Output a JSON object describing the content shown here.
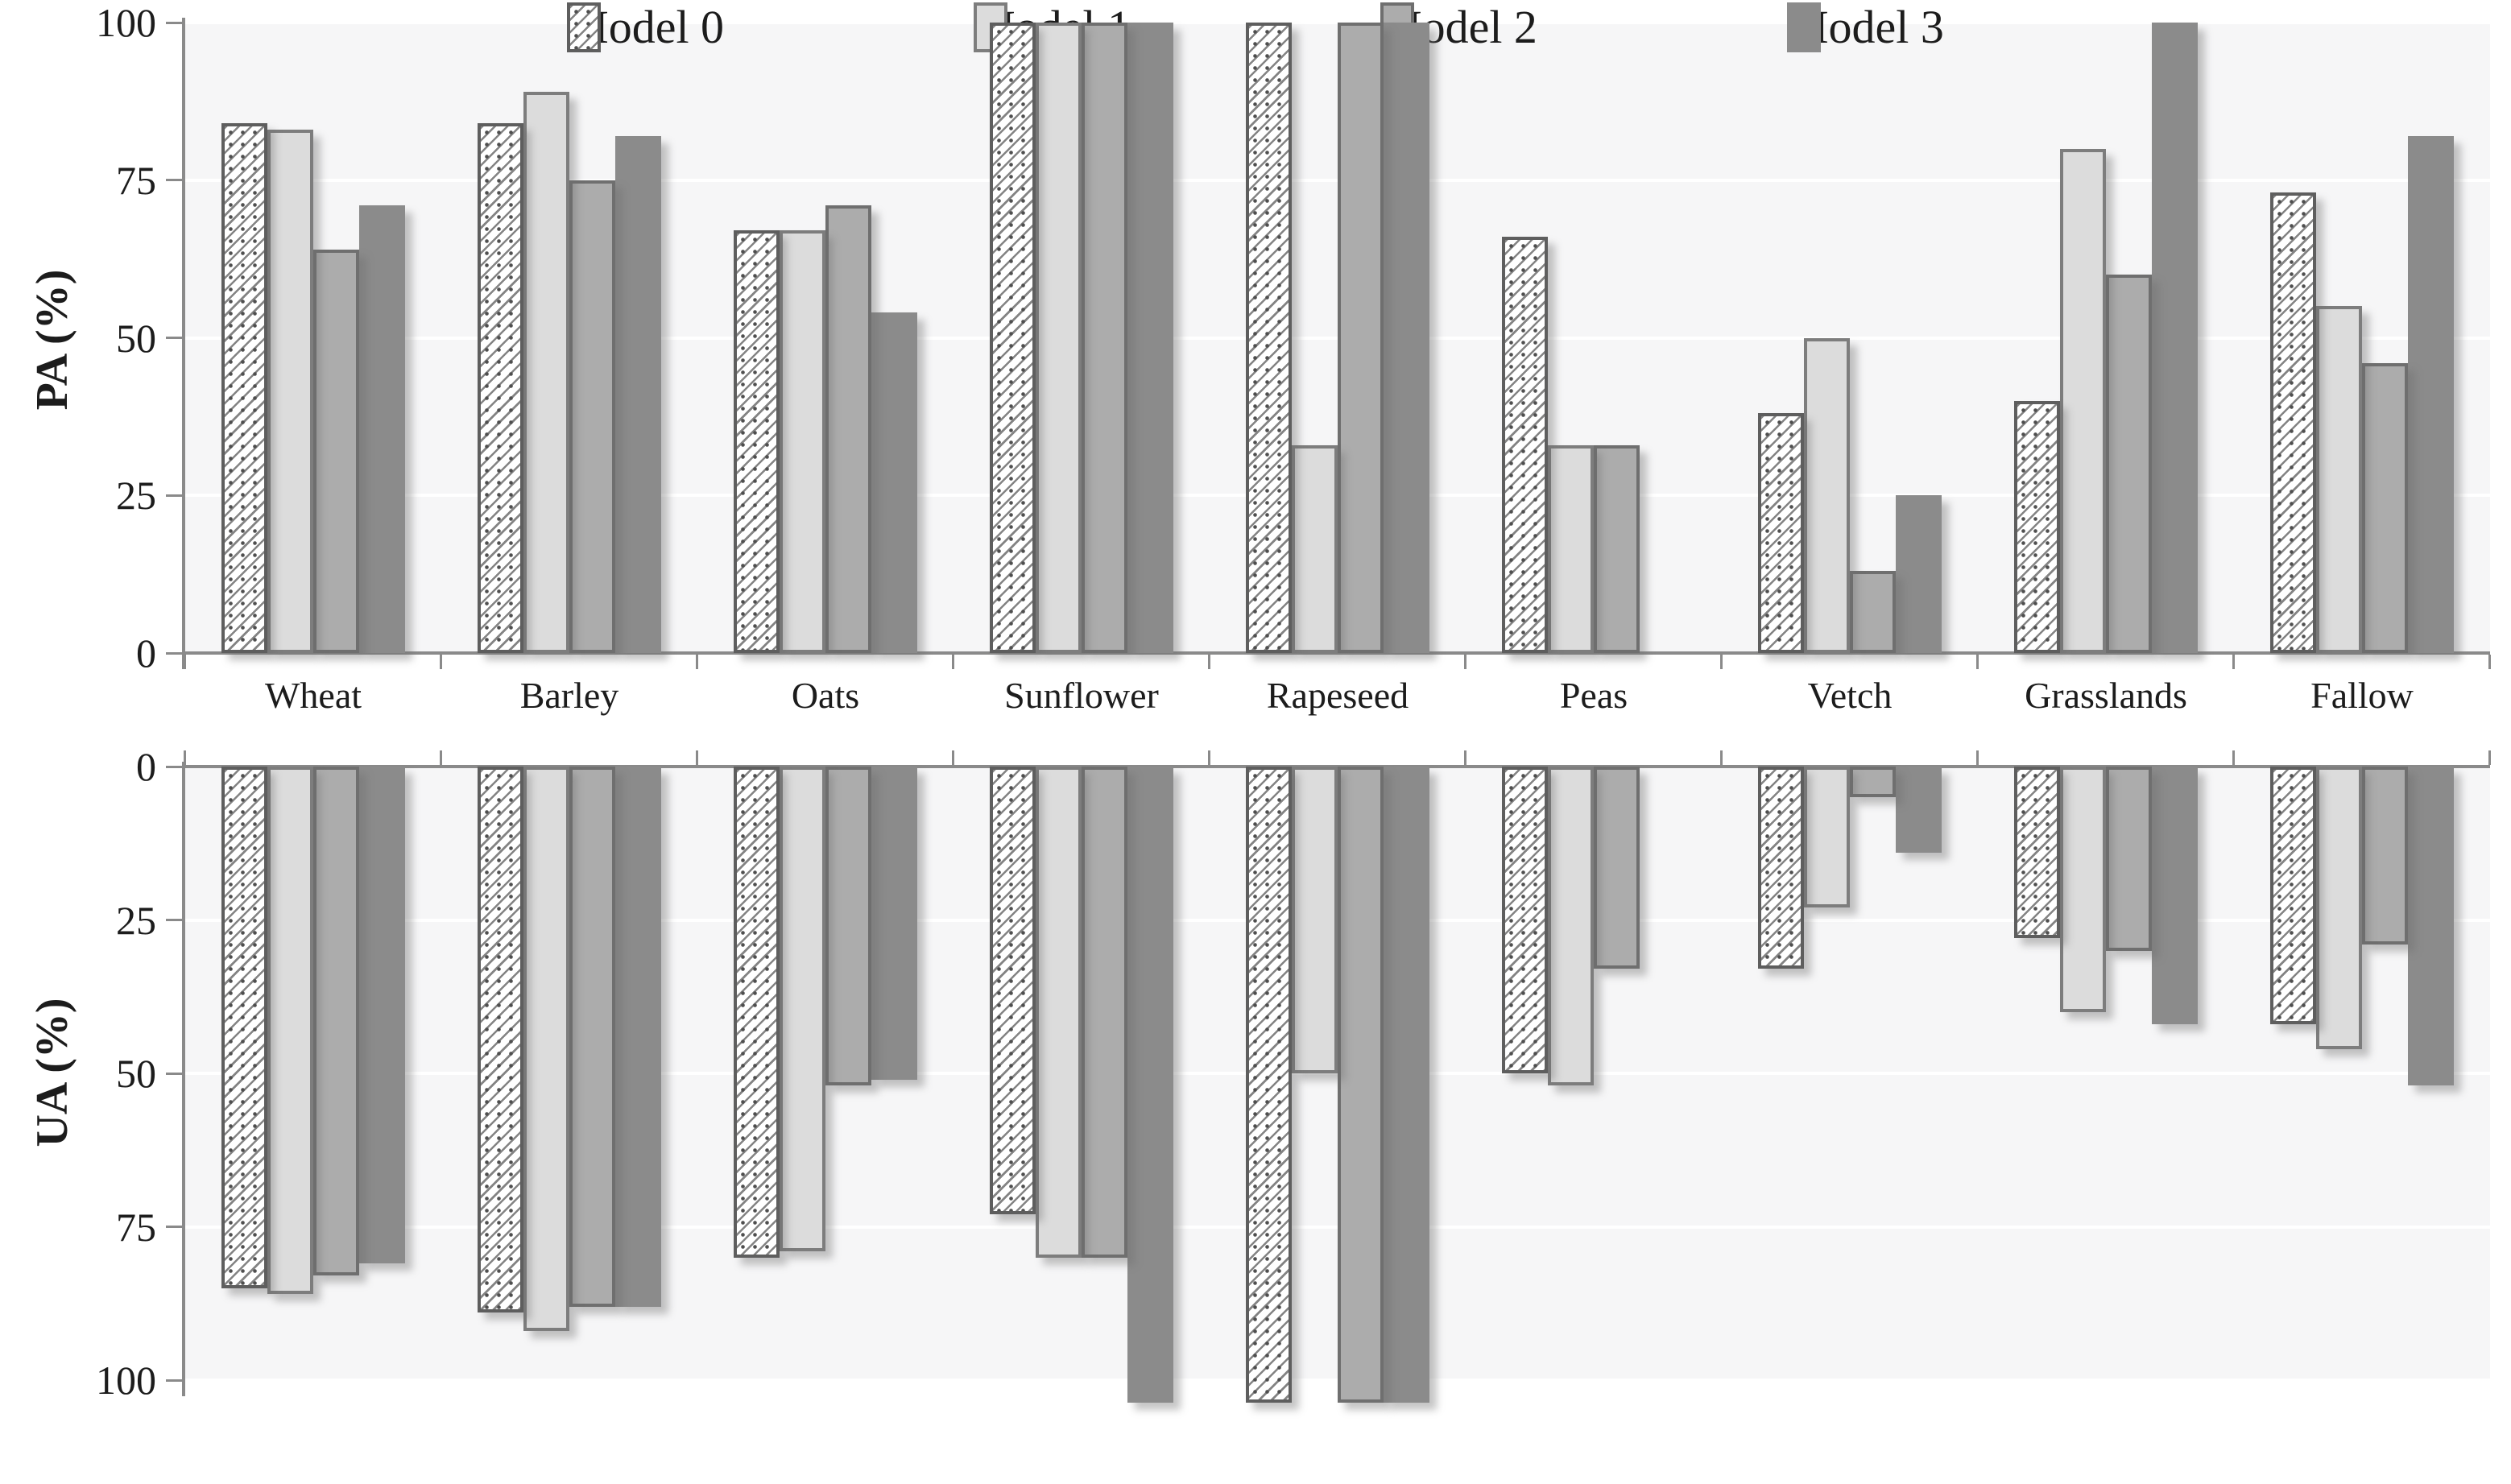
{
  "legend": {
    "items": [
      {
        "label": "Model 0",
        "style": "hatched",
        "fill": "#ffffff"
      },
      {
        "label": "Model 1",
        "style": "solid",
        "fill": "#dcdcdc"
      },
      {
        "label": "Model 2",
        "style": "solid",
        "fill": "#acacac"
      },
      {
        "label": "Model 3",
        "style": "solid",
        "fill": "#8b8b8b"
      }
    ],
    "position": "bottom"
  },
  "colors": {
    "plot_background": "#f6f6f7",
    "gridline": "#ffffff",
    "axis": "#8a8a8a",
    "text": "#1c1c1c",
    "model0_fill": "#ffffff",
    "model1_fill": "#dcdcdc",
    "model2_fill": "#acacac",
    "model3_fill": "#8b8b8b",
    "bar_border": "#6f6f6f"
  },
  "chart_data": [
    {
      "type": "bar",
      "ylabel": "PA (%)",
      "categories": [
        "Wheat",
        "Barley",
        "Oats",
        "Sunflower",
        "Rapeseed",
        "Peas",
        "Vetch",
        "Grasslands",
        "Fallow"
      ],
      "series": [
        {
          "name": "Model 0",
          "values": [
            84,
            84,
            67,
            100,
            100,
            66,
            38,
            40,
            73
          ]
        },
        {
          "name": "Model 1",
          "values": [
            83,
            89,
            67,
            100,
            33,
            33,
            50,
            80,
            55
          ]
        },
        {
          "name": "Model 2",
          "values": [
            64,
            75,
            71,
            100,
            100,
            33,
            13,
            60,
            46
          ]
        },
        {
          "name": "Model 3",
          "values": [
            71,
            82,
            54,
            100,
            100,
            0,
            25,
            100,
            82
          ]
        }
      ],
      "yticks": [
        100,
        75,
        50,
        25,
        0
      ],
      "ylim": [
        0,
        100
      ],
      "inverted": false,
      "grid": true,
      "legend_position": "bottom"
    },
    {
      "type": "bar",
      "ylabel": "UA (%)",
      "categories": [
        "Wheat",
        "Barley",
        "Oats",
        "Sunflower",
        "Rapeseed",
        "Peas",
        "Vetch",
        "Grasslands",
        "Fallow"
      ],
      "series": [
        {
          "name": "Model 0",
          "values": [
            85,
            89,
            80,
            73,
            100,
            50,
            33,
            28,
            42
          ]
        },
        {
          "name": "Model 1",
          "values": [
            86,
            92,
            79,
            80,
            50,
            52,
            23,
            40,
            46
          ]
        },
        {
          "name": "Model 2",
          "values": [
            83,
            88,
            52,
            80,
            100,
            33,
            5,
            30,
            29
          ]
        },
        {
          "name": "Model 3",
          "values": [
            81,
            88,
            51,
            100,
            100,
            0,
            14,
            42,
            52
          ]
        }
      ],
      "yticks": [
        0,
        25,
        50,
        75,
        100
      ],
      "ylim": [
        0,
        100
      ],
      "inverted": true,
      "grid": true,
      "legend_position": "bottom"
    }
  ]
}
